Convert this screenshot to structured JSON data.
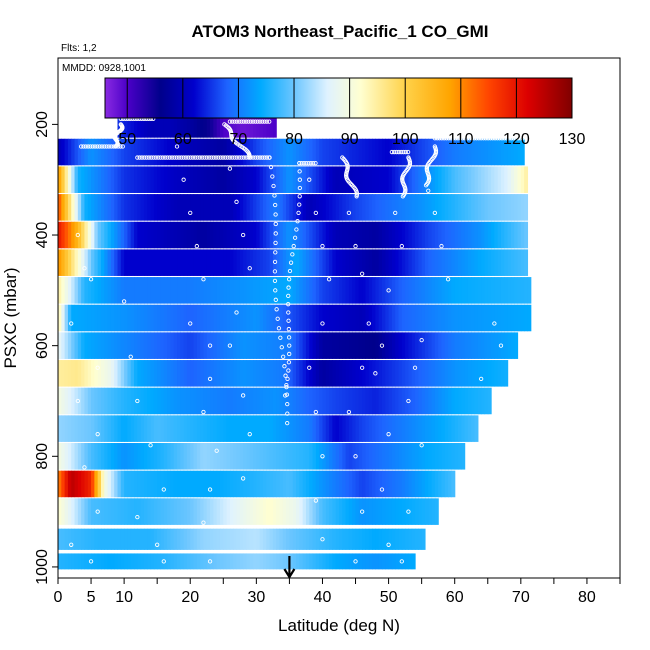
{
  "chart_data": {
    "type": "heatmap",
    "title": "ATOM3 Northeast_Pacific_1 CO_GMI",
    "annotations": {
      "flights": "Flts: 1,2",
      "dates": "MMDD: 0928,1001"
    },
    "xlabel": "Latitude (deg N)",
    "ylabel": "PSXC (mbar)",
    "xlim": [
      0,
      85
    ],
    "ylim": [
      1020,
      80
    ],
    "x_ticks": [
      0,
      5,
      10,
      20,
      30,
      40,
      50,
      60,
      70,
      80
    ],
    "y_ticks": [
      200,
      400,
      600,
      800,
      1000
    ],
    "colorbar": {
      "min": 46,
      "max": 130,
      "ticks": [
        50,
        60,
        70,
        80,
        90,
        100,
        110,
        120,
        130
      ],
      "stops": [
        {
          "v": 46,
          "c": "#8a2be2"
        },
        {
          "v": 50,
          "c": "#4b00c8"
        },
        {
          "v": 56,
          "c": "#00008b"
        },
        {
          "v": 62,
          "c": "#0000cd"
        },
        {
          "v": 68,
          "c": "#1e64ff"
        },
        {
          "v": 74,
          "c": "#00aaff"
        },
        {
          "v": 80,
          "c": "#6cc6ff"
        },
        {
          "v": 86,
          "c": "#dff2ff"
        },
        {
          "v": 92,
          "c": "#ffffd0"
        },
        {
          "v": 100,
          "c": "#ffd24a"
        },
        {
          "v": 108,
          "c": "#ffa500"
        },
        {
          "v": 115,
          "c": "#ff4500"
        },
        {
          "v": 122,
          "c": "#dc0000"
        },
        {
          "v": 130,
          "c": "#800000"
        }
      ]
    },
    "marker": {
      "x": 35,
      "label": "arrow"
    },
    "bands": [
      {
        "p": 200,
        "x_end": 33,
        "k": [
          [
            9,
            65
          ],
          [
            14,
            60
          ],
          [
            17,
            60
          ],
          [
            20,
            58
          ],
          [
            23,
            55
          ],
          [
            25,
            50
          ],
          [
            28,
            48
          ],
          [
            33,
            50
          ]
        ]
      },
      {
        "p": 250,
        "x_end": 70.5,
        "k": [
          [
            0,
            60
          ],
          [
            5,
            72
          ],
          [
            10,
            66
          ],
          [
            20,
            60
          ],
          [
            25,
            58
          ],
          [
            30,
            66
          ],
          [
            35,
            72
          ],
          [
            40,
            66
          ],
          [
            50,
            62
          ],
          [
            60,
            70
          ],
          [
            70.5,
            74
          ]
        ]
      },
      {
        "p": 300,
        "x_end": 71,
        "k": [
          [
            0,
            110
          ],
          [
            3,
            75
          ],
          [
            10,
            65
          ],
          [
            20,
            60
          ],
          [
            25,
            58
          ],
          [
            30,
            62
          ],
          [
            35,
            72
          ],
          [
            42,
            60
          ],
          [
            50,
            62
          ],
          [
            60,
            78
          ],
          [
            68,
            86
          ],
          [
            71,
            95
          ]
        ]
      },
      {
        "p": 350,
        "x_end": 71,
        "k": [
          [
            0,
            115
          ],
          [
            4,
            75
          ],
          [
            10,
            65
          ],
          [
            18,
            60
          ],
          [
            26,
            60
          ],
          [
            33,
            70
          ],
          [
            38,
            60
          ],
          [
            45,
            66
          ],
          [
            55,
            72
          ],
          [
            65,
            80
          ],
          [
            71,
            82
          ]
        ]
      },
      {
        "p": 400,
        "x_end": 71,
        "k": [
          [
            0,
            120
          ],
          [
            3,
            105
          ],
          [
            6,
            80
          ],
          [
            12,
            62
          ],
          [
            22,
            58
          ],
          [
            30,
            62
          ],
          [
            35,
            72
          ],
          [
            42,
            60
          ],
          [
            48,
            58
          ],
          [
            56,
            66
          ],
          [
            64,
            72
          ],
          [
            71,
            80
          ]
        ]
      },
      {
        "p": 450,
        "x_end": 71,
        "k": [
          [
            0,
            110
          ],
          [
            5,
            80
          ],
          [
            10,
            62
          ],
          [
            18,
            62
          ],
          [
            26,
            62
          ],
          [
            32,
            66
          ],
          [
            36,
            74
          ],
          [
            42,
            62
          ],
          [
            48,
            58
          ],
          [
            56,
            68
          ],
          [
            64,
            74
          ],
          [
            71,
            78
          ]
        ]
      },
      {
        "p": 500,
        "x_end": 71.5,
        "k": [
          [
            0,
            95
          ],
          [
            4,
            76
          ],
          [
            10,
            70
          ],
          [
            20,
            70
          ],
          [
            28,
            72
          ],
          [
            35,
            74
          ],
          [
            40,
            66
          ],
          [
            46,
            62
          ],
          [
            52,
            68
          ],
          [
            60,
            74
          ],
          [
            71.5,
            76
          ]
        ]
      },
      {
        "p": 550,
        "x_end": 71.5,
        "k": [
          [
            0,
            95
          ],
          [
            2,
            74
          ],
          [
            10,
            72
          ],
          [
            20,
            68
          ],
          [
            30,
            72
          ],
          [
            36,
            66
          ],
          [
            40,
            62
          ],
          [
            46,
            60
          ],
          [
            52,
            68
          ],
          [
            60,
            72
          ],
          [
            71.5,
            74
          ]
        ]
      },
      {
        "p": 600,
        "x_end": 69.5,
        "k": [
          [
            0,
            88
          ],
          [
            4,
            74
          ],
          [
            12,
            70
          ],
          [
            20,
            66
          ],
          [
            28,
            72
          ],
          [
            35,
            70
          ],
          [
            40,
            58
          ],
          [
            48,
            56
          ],
          [
            52,
            62
          ],
          [
            60,
            70
          ],
          [
            69.5,
            74
          ]
        ]
      },
      {
        "p": 650,
        "x_end": 68,
        "k": [
          [
            0,
            95
          ],
          [
            3,
            96
          ],
          [
            8,
            88
          ],
          [
            12,
            74
          ],
          [
            20,
            68
          ],
          [
            28,
            72
          ],
          [
            34,
            70
          ],
          [
            40,
            58
          ],
          [
            46,
            62
          ],
          [
            52,
            66
          ],
          [
            60,
            72
          ],
          [
            68,
            75
          ]
        ]
      },
      {
        "p": 700,
        "x_end": 65.5,
        "k": [
          [
            0,
            90
          ],
          [
            5,
            80
          ],
          [
            10,
            76
          ],
          [
            18,
            72
          ],
          [
            26,
            70
          ],
          [
            33,
            72
          ],
          [
            38,
            68
          ],
          [
            42,
            66
          ],
          [
            48,
            64
          ],
          [
            54,
            68
          ],
          [
            60,
            74
          ],
          [
            65.5,
            76
          ]
        ]
      },
      {
        "p": 750,
        "x_end": 63.5,
        "k": [
          [
            0,
            82
          ],
          [
            5,
            80
          ],
          [
            10,
            74
          ],
          [
            15,
            78
          ],
          [
            20,
            76
          ],
          [
            26,
            74
          ],
          [
            32,
            74
          ],
          [
            38,
            70
          ],
          [
            42,
            62
          ],
          [
            46,
            66
          ],
          [
            52,
            70
          ],
          [
            58,
            74
          ],
          [
            63.5,
            78
          ]
        ]
      },
      {
        "p": 800,
        "x_end": 61.5,
        "k": [
          [
            0,
            90
          ],
          [
            5,
            78
          ],
          [
            10,
            72
          ],
          [
            16,
            76
          ],
          [
            22,
            82
          ],
          [
            28,
            80
          ],
          [
            33,
            78
          ],
          [
            38,
            76
          ],
          [
            44,
            66
          ],
          [
            50,
            70
          ],
          [
            56,
            74
          ],
          [
            61.5,
            76
          ]
        ]
      },
      {
        "p": 850,
        "x_end": 60,
        "k": [
          [
            0,
            110
          ],
          [
            2,
            125
          ],
          [
            5,
            118
          ],
          [
            7,
            90
          ],
          [
            10,
            76
          ],
          [
            18,
            74
          ],
          [
            24,
            74
          ],
          [
            30,
            76
          ],
          [
            35,
            78
          ],
          [
            40,
            72
          ],
          [
            46,
            66
          ],
          [
            52,
            70
          ],
          [
            58,
            76
          ],
          [
            60,
            78
          ]
        ]
      },
      {
        "p": 900,
        "x_end": 57.5,
        "k": [
          [
            0,
            92
          ],
          [
            5,
            78
          ],
          [
            12,
            76
          ],
          [
            20,
            80
          ],
          [
            26,
            86
          ],
          [
            32,
            92
          ],
          [
            36,
            88
          ],
          [
            40,
            78
          ],
          [
            46,
            72
          ],
          [
            52,
            74
          ],
          [
            57.5,
            76
          ]
        ]
      },
      {
        "p": 950,
        "x_end": 55.5,
        "k": [
          [
            0,
            78
          ],
          [
            6,
            76
          ],
          [
            14,
            76
          ],
          [
            22,
            82
          ],
          [
            30,
            84
          ],
          [
            35,
            80
          ],
          [
            42,
            76
          ],
          [
            48,
            74
          ],
          [
            55.5,
            76
          ]
        ]
      },
      {
        "p": 990,
        "x_end": 54,
        "k": [
          [
            0,
            76
          ],
          [
            8,
            74
          ],
          [
            16,
            76
          ],
          [
            24,
            80
          ],
          [
            30,
            82
          ],
          [
            35,
            80
          ],
          [
            42,
            74
          ],
          [
            48,
            72
          ],
          [
            54,
            74
          ]
        ]
      }
    ],
    "flight_tracks": {
      "flat_segments": [
        {
          "p": 190,
          "x": [
            9.5,
            14.5
          ]
        },
        {
          "p": 195,
          "x": [
            26,
            32
          ]
        },
        {
          "p": 260,
          "x": [
            12,
            32
          ]
        },
        {
          "p": 240,
          "x": [
            3.5,
            10
          ]
        },
        {
          "p": 225,
          "x": [
            57,
            70.5
          ]
        },
        {
          "p": 250,
          "x": [
            50.5,
            53
          ]
        },
        {
          "p": 270,
          "x": [
            36.5,
            39
          ]
        }
      ],
      "descents": [
        {
          "x0": 32,
          "p0": 260,
          "x1": 34.5,
          "p1": 740
        },
        {
          "x0": 36.5,
          "p0": 270,
          "x1": 34.2,
          "p1": 690
        },
        {
          "x0": 9.5,
          "p0": 200,
          "x1": 8.5,
          "p1": 240
        },
        {
          "x0": 29,
          "p0": 260,
          "x1": 25,
          "p1": 200
        },
        {
          "x0": 43,
          "p0": 260,
          "x1": 45,
          "p1": 330
        },
        {
          "x0": 53,
          "p0": 260,
          "x1": 52,
          "p1": 330
        },
        {
          "x0": 57,
          "p0": 240,
          "x1": 55.5,
          "p1": 310
        }
      ],
      "scatter": [
        [
          3,
          400
        ],
        [
          4,
          460
        ],
        [
          5,
          480
        ],
        [
          2,
          560
        ],
        [
          6,
          640
        ],
        [
          3,
          700
        ],
        [
          6,
          760
        ],
        [
          4,
          820
        ],
        [
          6,
          900
        ],
        [
          2,
          960
        ],
        [
          5,
          990
        ],
        [
          10,
          520
        ],
        [
          11,
          620
        ],
        [
          12,
          700
        ],
        [
          14,
          780
        ],
        [
          16,
          860
        ],
        [
          12,
          910
        ],
        [
          15,
          960
        ],
        [
          16,
          990
        ],
        [
          18,
          240
        ],
        [
          19,
          300
        ],
        [
          20,
          360
        ],
        [
          21,
          420
        ],
        [
          22,
          480
        ],
        [
          20,
          560
        ],
        [
          23,
          600
        ],
        [
          23,
          660
        ],
        [
          22,
          720
        ],
        [
          24,
          790
        ],
        [
          23,
          860
        ],
        [
          22,
          920
        ],
        [
          23,
          990
        ],
        [
          26,
          280
        ],
        [
          27,
          340
        ],
        [
          28,
          400
        ],
        [
          29,
          460
        ],
        [
          27,
          540
        ],
        [
          26,
          600
        ],
        [
          28,
          690
        ],
        [
          29,
          760
        ],
        [
          28,
          840
        ],
        [
          38,
          300
        ],
        [
          39,
          360
        ],
        [
          40,
          420
        ],
        [
          41,
          480
        ],
        [
          40,
          560
        ],
        [
          38,
          640
        ],
        [
          39,
          720
        ],
        [
          40,
          800
        ],
        [
          39,
          880
        ],
        [
          40,
          950
        ],
        [
          44,
          360
        ],
        [
          45,
          420
        ],
        [
          46,
          470
        ],
        [
          47,
          560
        ],
        [
          46,
          640
        ],
        [
          44,
          720
        ],
        [
          45,
          800
        ],
        [
          46,
          900
        ],
        [
          45,
          990
        ],
        [
          51,
          360
        ],
        [
          52,
          420
        ],
        [
          50,
          500
        ],
        [
          49,
          600
        ],
        [
          48,
          650
        ],
        [
          50,
          760
        ],
        [
          49,
          860
        ],
        [
          50,
          960
        ],
        [
          56,
          320
        ],
        [
          57,
          360
        ],
        [
          58,
          420
        ],
        [
          59,
          480
        ],
        [
          55,
          590
        ],
        [
          54,
          640
        ],
        [
          53,
          700
        ],
        [
          55,
          780
        ],
        [
          53,
          900
        ],
        [
          52,
          990
        ],
        [
          66,
          560
        ],
        [
          67,
          600
        ],
        [
          64,
          660
        ]
      ]
    }
  }
}
